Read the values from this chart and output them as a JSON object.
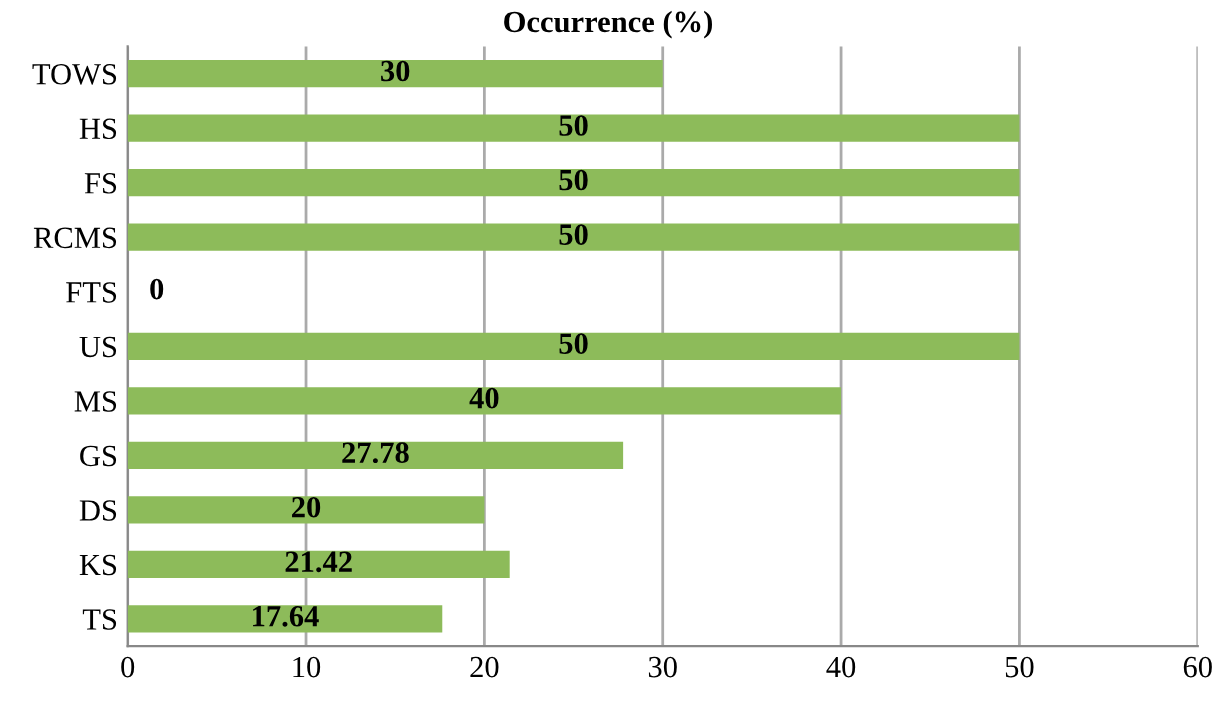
{
  "chart_data": {
    "type": "bar",
    "orientation": "horizontal",
    "title": "Occurrence (%)",
    "categories": [
      "TOWS",
      "HS",
      "FS",
      "RCMS",
      "FTS",
      "US",
      "MS",
      "GS",
      "DS",
      "KS",
      "TS"
    ],
    "values": [
      30,
      50,
      50,
      50,
      0,
      50,
      40,
      27.78,
      20,
      21.42,
      17.64
    ],
    "color": "#8dbb5a",
    "data_labels": true,
    "xlim": [
      0,
      60
    ],
    "xticks": [
      0,
      10,
      20,
      30,
      40,
      50,
      60
    ],
    "grid": "x",
    "legend": false
  }
}
